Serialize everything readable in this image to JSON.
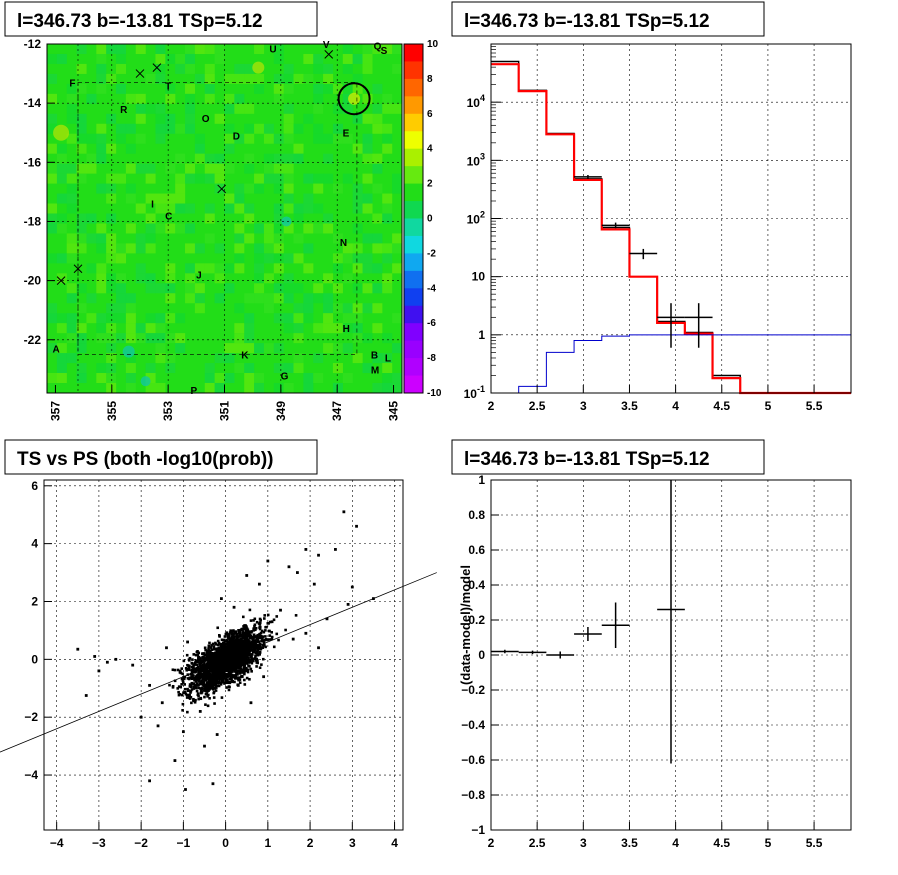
{
  "chart_data": [
    {
      "type": "heatmap",
      "title": "l=346.73 b=-13.81 TSp=5.12",
      "xlabel": "",
      "ylabel": "",
      "x_ticks": [
        "357",
        "355",
        "353",
        "351",
        "349",
        "347",
        "345"
      ],
      "y_ticks": [
        "-12",
        "-14",
        "-16",
        "-18",
        "-20",
        "-22"
      ],
      "xlim": [
        357.3,
        344.7
      ],
      "ylim": [
        -23.8,
        -12.0
      ],
      "colorbar": {
        "min": -10,
        "max": 10,
        "ticks": [
          "10",
          "8",
          "6",
          "4",
          "2",
          "0",
          "-2",
          "-4",
          "-6",
          "-8",
          "-10"
        ]
      },
      "labels": [
        {
          "text": "U",
          "l": 349.3,
          "b": -12.15
        },
        {
          "text": "V",
          "l": 347.4,
          "b": -12.0
        },
        {
          "text": "Q",
          "l": 345.6,
          "b": -12.05
        },
        {
          "text": "S",
          "l": 345.35,
          "b": -12.2
        },
        {
          "text": "F",
          "l": 356.4,
          "b": -13.3
        },
        {
          "text": "T",
          "l": 353.0,
          "b": -13.4
        },
        {
          "text": "R",
          "l": 354.6,
          "b": -14.2
        },
        {
          "text": "O",
          "l": 351.7,
          "b": -14.5
        },
        {
          "text": "D",
          "l": 350.6,
          "b": -15.1
        },
        {
          "text": "E",
          "l": 346.7,
          "b": -15.0
        },
        {
          "text": "I",
          "l": 353.5,
          "b": -17.4
        },
        {
          "text": "C",
          "l": 353.0,
          "b": -17.8
        },
        {
          "text": "N",
          "l": 346.8,
          "b": -18.7
        },
        {
          "text": "J",
          "l": 351.9,
          "b": -19.8
        },
        {
          "text": "H",
          "l": 346.7,
          "b": -21.6
        },
        {
          "text": "A",
          "l": 357.0,
          "b": -22.3
        },
        {
          "text": "K",
          "l": 350.3,
          "b": -22.5
        },
        {
          "text": "B",
          "l": 345.7,
          "b": -22.5
        },
        {
          "text": "L",
          "l": 345.2,
          "b": -22.6
        },
        {
          "text": "M",
          "l": 345.7,
          "b": -23.0
        },
        {
          "text": "G",
          "l": 348.9,
          "b": -23.2
        },
        {
          "text": "P",
          "l": 352.1,
          "b": -23.7
        }
      ],
      "x_markers": [
        {
          "l": 354.0,
          "b": -13.0
        },
        {
          "l": 353.4,
          "b": -12.8
        },
        {
          "l": 347.3,
          "b": -12.35
        },
        {
          "l": 351.1,
          "b": -16.9
        },
        {
          "l": 356.2,
          "b": -19.6
        },
        {
          "l": 356.8,
          "b": -20.0
        }
      ],
      "circle": {
        "l": 346.4,
        "b": -13.85,
        "r_deg": 0.55
      }
    },
    {
      "type": "line",
      "title": "l=346.73 b=-13.81 TSp=5.12",
      "xlabel": "",
      "ylabel": "",
      "yscale": "log",
      "xlim": [
        2.0,
        5.9
      ],
      "ylim": [
        0.1,
        100000
      ],
      "x_ticks": [
        "2",
        "2.5",
        "3",
        "3.5",
        "4",
        "4.5",
        "5",
        "5.5"
      ],
      "y_ticks": [
        {
          "v": 0.1,
          "t": "10-1"
        },
        {
          "v": 1,
          "t": "1"
        },
        {
          "v": 10,
          "t": "10"
        },
        {
          "v": 100,
          "t": "102"
        },
        {
          "v": 1000,
          "t": "103"
        },
        {
          "v": 10000,
          "t": "104"
        }
      ],
      "grid": true,
      "bin_edges": [
        2.0,
        2.3,
        2.6,
        2.9,
        3.2,
        3.5,
        3.8,
        4.1,
        4.4,
        4.7,
        5.0,
        5.3,
        5.6,
        5.9
      ],
      "series": [
        {
          "values": [
            50000,
            16000,
            2900,
            480,
            70,
            10,
            1.7,
            1.1,
            0.2,
            0.1,
            0.1,
            0.1,
            0.1
          ],
          "color": "#000000"
        },
        {
          "values": [
            45000,
            15500,
            2800,
            460,
            65,
            10,
            1.6,
            1.05,
            0.18,
            0.1,
            0.1,
            0.1,
            0.1
          ],
          "color": "#ff0000"
        },
        {
          "values": [
            0.1,
            0.13,
            0.5,
            0.8,
            0.95,
            1,
            1,
            1,
            1,
            1,
            1,
            1,
            1
          ],
          "color": "#0000cc"
        }
      ],
      "points": [
        {
          "x": 3.05,
          "y": 520,
          "xerr": 0.15,
          "ylo": 480,
          "yhi": 560
        },
        {
          "x": 3.35,
          "y": 76,
          "xerr": 0.15,
          "ylo": 68,
          "yhi": 85
        },
        {
          "x": 3.65,
          "y": 25,
          "xerr": 0.15,
          "ylo": 20,
          "yhi": 30
        },
        {
          "x": 3.95,
          "y": 2.0,
          "xerr": 0.15,
          "ylo": 0.6,
          "yhi": 3.5
        },
        {
          "x": 4.25,
          "y": 2.0,
          "xerr": 0.15,
          "ylo": 0.6,
          "yhi": 3.5
        }
      ]
    },
    {
      "type": "scatter",
      "title": "TS vs PS (both -log10(prob))",
      "xlabel": "",
      "ylabel": "",
      "xlim": [
        -4.3,
        4.2
      ],
      "ylim": [
        -5.9,
        6.2
      ],
      "x_ticks": [
        "-4",
        "-3",
        "-2",
        "-1",
        "0",
        "1",
        "2",
        "3",
        "4"
      ],
      "y_ticks": [
        "6",
        "4",
        "2",
        "0",
        "-2",
        "-4"
      ],
      "grid": true,
      "reference_line": {
        "slope": 1,
        "intercept": 0
      },
      "series": [
        {
          "points": [
            [
              -3.5,
              0.35
            ],
            [
              -3.1,
              0.1
            ],
            [
              -3.0,
              -0.4
            ],
            [
              -3.3,
              -1.25
            ],
            [
              -1.8,
              -4.2
            ],
            [
              -0.95,
              -4.5
            ],
            [
              3.5,
              2.1
            ],
            [
              2.9,
              1.9
            ],
            [
              3.0,
              2.5
            ],
            [
              2.8,
              5.1
            ],
            [
              3.1,
              4.6
            ],
            [
              2.2,
              3.6
            ],
            [
              2.6,
              3.8
            ],
            [
              1.7,
              3.0
            ],
            [
              1.9,
              3.8
            ],
            [
              1.5,
              3.2
            ],
            [
              1.0,
              3.4
            ],
            [
              0.8,
              2.6
            ],
            [
              -1.6,
              -2.3
            ],
            [
              -2.0,
              -2.0
            ],
            [
              -2.6,
              0.0
            ],
            [
              -2.8,
              -0.1
            ],
            [
              -2.2,
              -0.2
            ],
            [
              -1.5,
              -1.5
            ],
            [
              -1.2,
              -3.5
            ],
            [
              -0.5,
              -3.0
            ],
            [
              -0.3,
              -4.3
            ],
            [
              1.3,
              1.7
            ],
            [
              2.4,
              1.4
            ],
            [
              2.1,
              2.6
            ],
            [
              0.2,
              1.8
            ],
            [
              -0.1,
              2.1
            ],
            [
              0.5,
              2.9
            ],
            [
              1.1,
              1.3
            ],
            [
              -0.9,
              0.6
            ],
            [
              -1.4,
              0.4
            ],
            [
              -1.0,
              -2.5
            ],
            [
              -0.6,
              -1.8
            ],
            [
              0.3,
              -0.9
            ],
            [
              0.9,
              -0.6
            ],
            [
              1.6,
              0.7
            ],
            [
              1.9,
              0.9
            ],
            [
              2.2,
              0.4
            ],
            [
              0.6,
              -1.5
            ],
            [
              -0.2,
              -2.6
            ],
            [
              -1.8,
              -0.9
            ]
          ]
        }
      ]
    },
    {
      "type": "line",
      "title": "l=346.73 b=-13.81 TSp=5.12",
      "xlabel": "",
      "ylabel": "(data-model)/model",
      "xlim": [
        2.0,
        5.9
      ],
      "ylim": [
        -1.0,
        1.0
      ],
      "x_ticks": [
        "2",
        "2.5",
        "3",
        "3.5",
        "4",
        "4.5",
        "5",
        "5.5"
      ],
      "y_ticks": [
        "1",
        "0.8",
        "0.6",
        "0.4",
        "0.2",
        "0",
        "-0.2",
        "-0.4",
        "-0.6",
        "-0.8",
        "-1"
      ],
      "grid": true,
      "points": [
        {
          "x": 2.15,
          "y": 0.02,
          "xerr": 0.15,
          "ylo": 0.01,
          "yhi": 0.03
        },
        {
          "x": 2.45,
          "y": 0.015,
          "xerr": 0.15,
          "ylo": 0.005,
          "yhi": 0.025
        },
        {
          "x": 2.75,
          "y": 0.0,
          "xerr": 0.15,
          "ylo": -0.02,
          "yhi": 0.02
        },
        {
          "x": 3.05,
          "y": 0.12,
          "xerr": 0.15,
          "ylo": 0.08,
          "yhi": 0.16
        },
        {
          "x": 3.35,
          "y": 0.17,
          "xerr": 0.15,
          "ylo": 0.04,
          "yhi": 0.3
        },
        {
          "x": 3.95,
          "y": 0.26,
          "xerr": 0.15,
          "ylo": -0.62,
          "yhi": 1.0
        }
      ]
    }
  ]
}
